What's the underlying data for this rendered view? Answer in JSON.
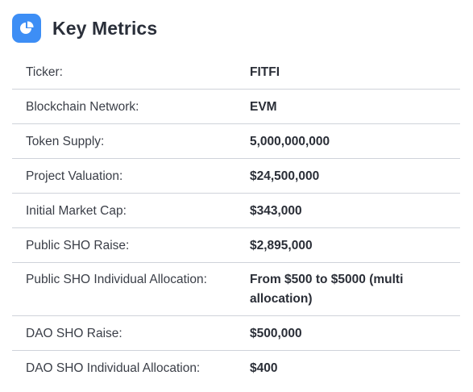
{
  "header": {
    "title": "Key Metrics",
    "icon": "pie-chart-icon",
    "icon_bg": "#3d8ef5"
  },
  "metrics": [
    {
      "label": "Ticker:",
      "value": "FITFI"
    },
    {
      "label": "Blockchain Network:",
      "value": "EVM"
    },
    {
      "label": "Token Supply:",
      "value": "5,000,000,000"
    },
    {
      "label": "Project Valuation:",
      "value": "$24,500,000"
    },
    {
      "label": "Initial Market Cap:",
      "value": "$343,000"
    },
    {
      "label": "Public SHO Raise:",
      "value": "$2,895,000"
    },
    {
      "label": "Public SHO Individual Allocation:",
      "value": "From $500 to $5000 (multi allocation)"
    },
    {
      "label": "DAO SHO Raise:",
      "value": "$500,000"
    },
    {
      "label": "DAO SHO Individual Allocation:",
      "value": "$400"
    }
  ]
}
